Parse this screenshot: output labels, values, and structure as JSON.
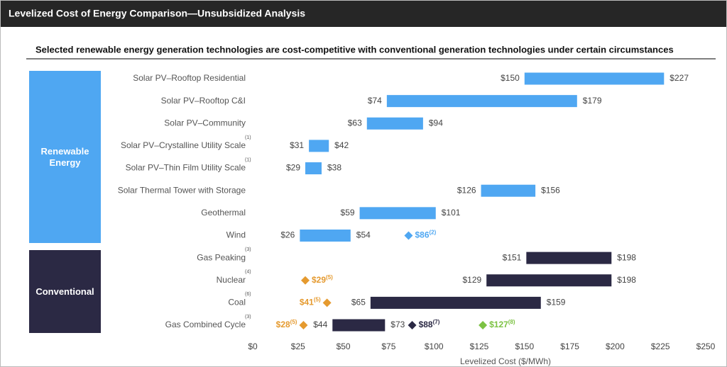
{
  "chart_data": {
    "type": "range_bar",
    "header": "Levelized Cost of Energy Comparison—Unsubsidized Analysis",
    "title": "Selected renewable energy generation technologies are cost-competitive with conventional generation technologies under certain circumstances",
    "x_label": "Levelized Cost ($/MWh)",
    "xlim": [
      0,
      250
    ],
    "xticks": [
      {
        "value": 0,
        "label": "$0"
      },
      {
        "value": 25,
        "label": "$25"
      },
      {
        "value": 50,
        "label": "$50"
      },
      {
        "value": 75,
        "label": "$75"
      },
      {
        "value": 100,
        "label": "$100"
      },
      {
        "value": 125,
        "label": "$125"
      },
      {
        "value": 150,
        "label": "$150"
      },
      {
        "value": 175,
        "label": "$175"
      },
      {
        "value": 200,
        "label": "$200"
      },
      {
        "value": 225,
        "label": "$225"
      },
      {
        "value": 250,
        "label": "$250"
      }
    ],
    "groups": [
      {
        "name": "Renewable Energy",
        "color": "#4fa7f2",
        "rows": [
          {
            "label": "Solar PV–Rooftop Residential",
            "low": 150,
            "high": 227,
            "low_label": "$150",
            "high_label": "$227"
          },
          {
            "label": "Solar PV–Rooftop C&I",
            "low": 74,
            "high": 179,
            "low_label": "$74",
            "high_label": "$179"
          },
          {
            "label": "Solar PV–Community",
            "low": 63,
            "high": 94,
            "low_label": "$63",
            "high_label": "$94"
          },
          {
            "label": "Solar PV–Crystalline Utility Scale",
            "footnote": "(1)",
            "low": 31,
            "high": 42,
            "low_label": "$31",
            "high_label": "$42"
          },
          {
            "label": "Solar PV–Thin Film Utility Scale",
            "footnote": "(1)",
            "low": 29,
            "high": 38,
            "low_label": "$29",
            "high_label": "$38"
          },
          {
            "label": "Solar Thermal Tower with Storage",
            "low": 126,
            "high": 156,
            "low_label": "$126",
            "high_label": "$156"
          },
          {
            "label": "Geothermal",
            "low": 59,
            "high": 101,
            "low_label": "$59",
            "high_label": "$101"
          },
          {
            "label": "Wind",
            "low": 26,
            "high": 54,
            "low_label": "$26",
            "high_label": "$54",
            "markers": [
              {
                "value": 86,
                "label": "$86",
                "note": "(2)",
                "color": "#4fa7f2"
              }
            ]
          }
        ]
      },
      {
        "name": "Conventional",
        "color": "#2b2944",
        "rows": [
          {
            "label": "Gas Peaking",
            "footnote": "(3)",
            "low": 151,
            "high": 198,
            "low_label": "$151",
            "high_label": "$198"
          },
          {
            "label": "Nuclear",
            "footnote": "(4)",
            "low": 129,
            "high": 198,
            "low_label": "$129",
            "high_label": "$198",
            "markers": [
              {
                "value": 29,
                "label": "$29",
                "note": "(5)",
                "color": "#e59a2f"
              }
            ]
          },
          {
            "label": "Coal",
            "footnote": "(6)",
            "low": 65,
            "high": 159,
            "low_label": "$65",
            "high_label": "$159",
            "markers": [
              {
                "value": 41,
                "label": "$41",
                "note": "(5)",
                "color": "#e59a2f"
              }
            ]
          },
          {
            "label": "Gas Combined Cycle",
            "footnote": "(3)",
            "low": 44,
            "high": 73,
            "low_label": "$44",
            "high_label": "$73",
            "markers": [
              {
                "value": 28,
                "label": "$28",
                "note": "(5)",
                "color": "#e59a2f"
              },
              {
                "value": 88,
                "label": "$88",
                "note": "(7)",
                "color": "#2b2944"
              },
              {
                "value": 127,
                "label": "$127",
                "note": "(8)",
                "color": "#7cc243"
              }
            ]
          }
        ]
      }
    ]
  }
}
